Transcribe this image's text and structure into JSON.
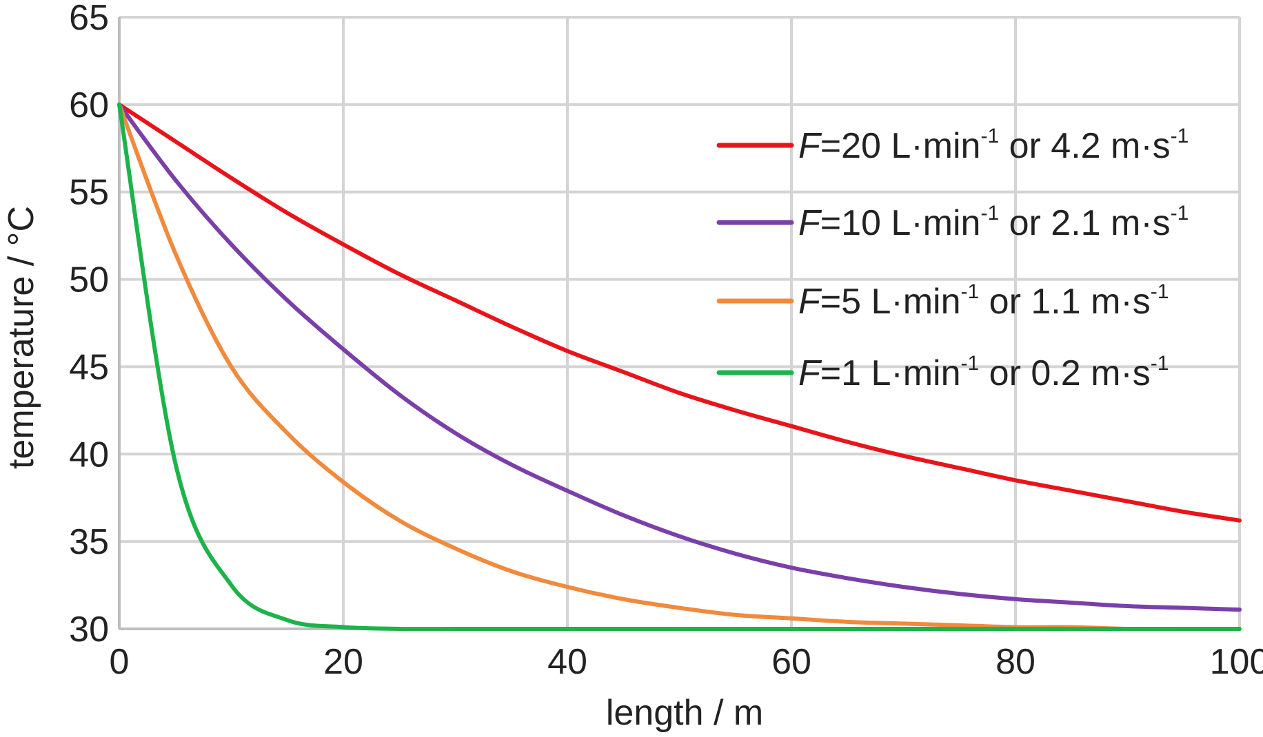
{
  "chart_data": {
    "type": "line",
    "xlabel": "length / m",
    "ylabel": "temperature / °C",
    "xlim": [
      0,
      100
    ],
    "ylim": [
      30,
      65
    ],
    "xticks": [
      "0",
      "20",
      "40",
      "60",
      "80",
      "100"
    ],
    "yticks": [
      "30",
      "35",
      "40",
      "45",
      "50",
      "55",
      "60",
      "65"
    ],
    "grid": true,
    "legend_position": "top-right",
    "x": [
      0,
      5,
      10,
      15,
      20,
      25,
      30,
      35,
      40,
      45,
      50,
      55,
      60,
      65,
      70,
      75,
      80,
      85,
      90,
      95,
      100
    ],
    "series": [
      {
        "legend": {
          "flow": "=20 L·min",
          "flow_exp": "-1",
          "speed": " or 4.2 m·s",
          "speed_exp": "-1"
        },
        "color": "#e8141b",
        "values": [
          60,
          57.9,
          55.8,
          53.8,
          52.0,
          50.3,
          48.8,
          47.3,
          45.9,
          44.7,
          43.5,
          42.5,
          41.6,
          40.7,
          39.9,
          39.2,
          38.5,
          37.9,
          37.3,
          36.7,
          36.2
        ]
      },
      {
        "legend": {
          "flow": "=10 L·min",
          "flow_exp": "-1",
          "speed": " or 2.1 m·s",
          "speed_exp": "-1"
        },
        "color": "#7a3fa8",
        "values": [
          60,
          55.7,
          52.0,
          48.8,
          46.0,
          43.4,
          41.2,
          39.4,
          37.9,
          36.5,
          35.3,
          34.3,
          33.5,
          32.9,
          32.4,
          32.0,
          31.7,
          31.5,
          31.3,
          31.2,
          31.1
        ]
      },
      {
        "legend": {
          "flow": "=5 L·min",
          "flow_exp": "-1",
          "speed": " or 1.1 m·s",
          "speed_exp": "-1"
        },
        "color": "#f08a3c",
        "values": [
          60,
          51.5,
          45.0,
          41.2,
          38.4,
          36.2,
          34.6,
          33.3,
          32.4,
          31.7,
          31.2,
          30.8,
          30.6,
          30.4,
          30.3,
          30.2,
          30.1,
          30.1,
          30.0,
          30.0,
          30.0
        ]
      },
      {
        "legend": {
          "flow": "=1 L·min",
          "flow_exp": "-1",
          "speed": " or 0.2 m·s",
          "speed_exp": "-1"
        },
        "color": "#1db34a",
        "values": [
          60,
          39.5,
          32.5,
          30.5,
          30.1,
          30.0,
          30.0,
          30.0,
          30.0,
          30.0,
          30.0,
          30.0,
          30.0,
          30.0,
          30.0,
          30.0,
          30.0,
          30.0,
          30.0,
          30.0,
          30.0
        ]
      }
    ],
    "legend_symbol": "F"
  }
}
